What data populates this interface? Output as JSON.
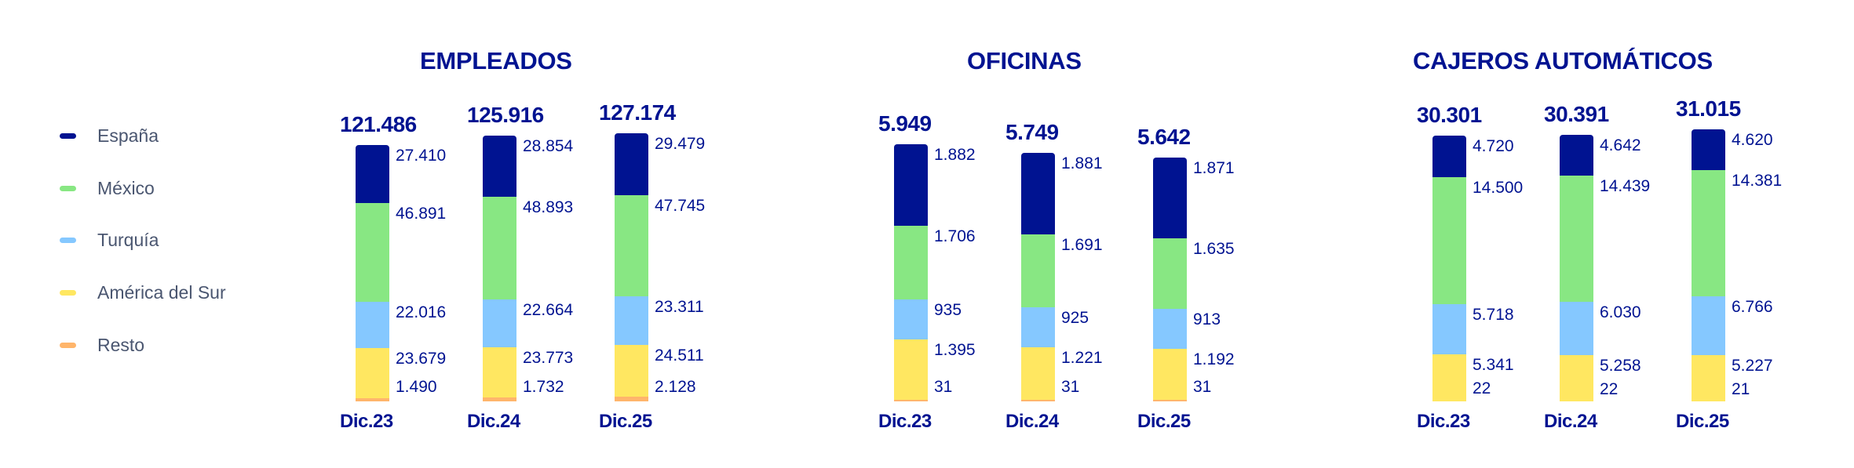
{
  "legend": [
    {
      "label": "España",
      "color": "#001391"
    },
    {
      "label": "México",
      "color": "#88E783"
    },
    {
      "label": "Turquía",
      "color": "#85C8FF"
    },
    {
      "label": "América del Sur",
      "color": "#FFE761"
    },
    {
      "label": "Resto",
      "color": "#FFB56B"
    }
  ],
  "panels": [
    {
      "title": "EMPLEADOS",
      "bars": [
        {
          "period": "Dic.23",
          "total": "121.486",
          "values": [
            "27.410",
            "46.891",
            "22.016",
            "23.679",
            "1.490"
          ]
        },
        {
          "period": "Dic.24",
          "total": "125.916",
          "values": [
            "28.854",
            "48.893",
            "22.664",
            "23.773",
            "1.732"
          ]
        },
        {
          "period": "Dic.25",
          "total": "127.174",
          "values": [
            "29.479",
            "47.745",
            "23.311",
            "24.511",
            "2.128"
          ]
        }
      ]
    },
    {
      "title": "OFICINAS",
      "bars": [
        {
          "period": "Dic.23",
          "total": "5.949",
          "values": [
            "1.882",
            "1.706",
            "935",
            "1.395",
            "31"
          ]
        },
        {
          "period": "Dic.24",
          "total": "5.749",
          "values": [
            "1.881",
            "1.691",
            "925",
            "1.221",
            "31"
          ]
        },
        {
          "period": "Dic.25",
          "total": "5.642",
          "values": [
            "1.871",
            "1.635",
            "913",
            "1.192",
            "31"
          ]
        }
      ]
    },
    {
      "title": "CAJEROS AUTOMÁTICOS",
      "bars": [
        {
          "period": "Dic.23",
          "total": "30.301",
          "values": [
            "4.720",
            "14.500",
            "5.718",
            "5.341",
            "22"
          ]
        },
        {
          "period": "Dic.24",
          "total": "30.391",
          "values": [
            "4.642",
            "14.439",
            "6.030",
            "5.258",
            "22"
          ]
        },
        {
          "period": "Dic.25",
          "total": "31.015",
          "values": [
            "4.620",
            "14.381",
            "6.766",
            "5.227",
            "21"
          ]
        }
      ]
    }
  ],
  "chart_data": [
    {
      "type": "bar",
      "stacked": true,
      "title": "EMPLEADOS",
      "categories": [
        "Dic.23",
        "Dic.24",
        "Dic.25"
      ],
      "totals": [
        121486,
        125916,
        127174
      ],
      "series": [
        {
          "name": "España",
          "values": [
            27410,
            28854,
            29479
          ]
        },
        {
          "name": "México",
          "values": [
            46891,
            48893,
            47745
          ]
        },
        {
          "name": "Turquía",
          "values": [
            22016,
            22664,
            23311
          ]
        },
        {
          "name": "América del Sur",
          "values": [
            23679,
            23773,
            24511
          ]
        },
        {
          "name": "Resto",
          "values": [
            1490,
            1732,
            2128
          ]
        }
      ],
      "legend_position": "left",
      "grid": false
    },
    {
      "type": "bar",
      "stacked": true,
      "title": "OFICINAS",
      "categories": [
        "Dic.23",
        "Dic.24",
        "Dic.25"
      ],
      "totals": [
        5949,
        5749,
        5642
      ],
      "series": [
        {
          "name": "España",
          "values": [
            1882,
            1881,
            1871
          ]
        },
        {
          "name": "México",
          "values": [
            1706,
            1691,
            1635
          ]
        },
        {
          "name": "Turquía",
          "values": [
            935,
            925,
            913
          ]
        },
        {
          "name": "América del Sur",
          "values": [
            1395,
            1221,
            1192
          ]
        },
        {
          "name": "Resto",
          "values": [
            31,
            31,
            31
          ]
        }
      ],
      "legend_position": "left",
      "grid": false
    },
    {
      "type": "bar",
      "stacked": true,
      "title": "CAJEROS AUTOMÁTICOS",
      "categories": [
        "Dic.23",
        "Dic.24",
        "Dic.25"
      ],
      "totals": [
        30301,
        30391,
        31015
      ],
      "series": [
        {
          "name": "España",
          "values": [
            4720,
            4642,
            4620
          ]
        },
        {
          "name": "México",
          "values": [
            14500,
            14439,
            14381
          ]
        },
        {
          "name": "Turquía",
          "values": [
            5718,
            6030,
            6766
          ]
        },
        {
          "name": "América del Sur",
          "values": [
            5341,
            5258,
            5227
          ]
        },
        {
          "name": "Resto",
          "values": [
            22,
            22,
            21
          ]
        }
      ],
      "legend_position": "left",
      "grid": false
    }
  ]
}
